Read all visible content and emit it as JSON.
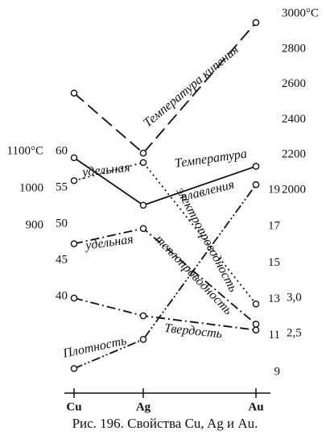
{
  "chart_data": {
    "type": "multi_axis_line",
    "caption": "Рис. 196. Свойства Cu, Ag и Au.",
    "categories": [
      "Cu",
      "Ag",
      "Au"
    ],
    "axes": [
      {
        "ylim": [
          448,
          1487
        ],
        "yticks": [
          900,
          1000,
          {
            "value": 1100,
            "label": "1100°C"
          }
        ]
      },
      {
        "ylim": [
          26.7,
          79.8
        ],
        "yticks": [
          40,
          45,
          50,
          55,
          60
        ]
      },
      {
        "ylim": [
          850,
          3032
        ],
        "yticks": [
          2000,
          2200,
          2400,
          2600,
          2800,
          {
            "value": 3000,
            "label": "3000°C"
          }
        ]
      },
      {
        "ylim": [
          7.85,
          29.0
        ],
        "yticks": [
          9,
          11,
          13,
          15,
          17,
          19
        ]
      },
      {
        "ylim": [
          1.66,
          7.09
        ],
        "yticks": [
          {
            "value": 2.5,
            "label": "2,5"
          },
          {
            "value": 3,
            "label": "3,0"
          }
        ]
      }
    ],
    "series": [
      {
        "name": [
          "Температура кипения"
        ],
        "axis": 2,
        "dash": "16,7",
        "color": "#111",
        "values": [
          2550,
          2210,
          2950
        ]
      },
      {
        "name": [
          "Температура",
          "плавления"
        ],
        "axis": 0,
        "dash": "none",
        "color": "#111",
        "values": [
          1083,
          955,
          1060
        ]
      },
      {
        "name": [
          "удельная",
          "электропроводность"
        ],
        "axis": 1,
        "dash": "2,4",
        "color": "#111",
        "values": [
          56,
          58.5,
          39
        ]
      },
      {
        "name": [
          "удельная",
          "теплопроводность"
        ],
        "axis": 1,
        "dash": "11,4,2,4",
        "color": "#111",
        "values": [
          47.3,
          49.4,
          36.2
        ]
      },
      {
        "name": [
          "Твердость"
        ],
        "axis": 4,
        "dash": "11,4,2,4",
        "color": "#111",
        "values": [
          3.0,
          2.75,
          2.55
        ]
      },
      {
        "name": [
          "Плотность"
        ],
        "axis": 3,
        "dash": "11,3,2,3,2,3",
        "color": "#111",
        "values": [
          9.2,
          10.8,
          19.3
        ]
      }
    ]
  }
}
